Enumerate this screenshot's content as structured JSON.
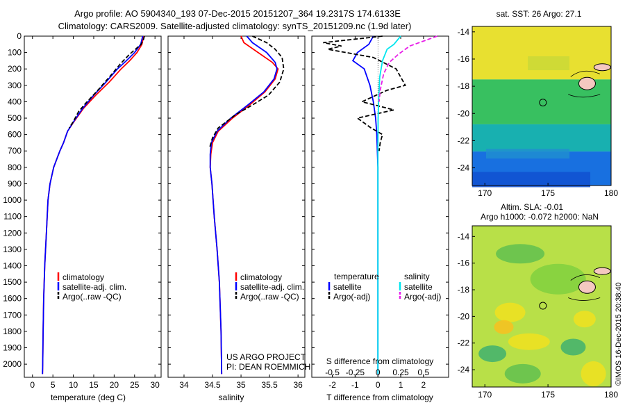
{
  "header": {
    "line1": "Argo profile: AO 5904340_193 07-Dec-2015 20151207_364 19.2317S 174.6133E",
    "line2": "Climatology: CARS2009. Satellite-adjusted climatology: synTS_20151209.nc (1.9d later)"
  },
  "colors": {
    "climatology": "#ff0000",
    "satellite": "#0000ff",
    "argo": "#000000",
    "sat_salinity": "#00e5ee",
    "argo_salinity": "#e81ee8"
  },
  "legend": {
    "climatology": "climatology",
    "satellite_adj": "satellite-adj. clim.",
    "argo": "Argo(..raw -QC)",
    "temperature": "temperature",
    "salinity": "salinity",
    "satellite": "satellite",
    "argo_adj": "Argo(-adj)"
  },
  "project": {
    "line1": "US ARGO PROJECT",
    "line2": "PI: DEAN ROEMMICH"
  },
  "credit": "©IMOS 16-Dec-2015 20:38:40",
  "chart_data": [
    {
      "id": "temperature",
      "type": "line",
      "xlabel": "temperature (deg C)",
      "ylabel": "",
      "xlim": [
        -2,
        31.5
      ],
      "ylim": [
        2080,
        0
      ],
      "xticks": [
        0,
        5,
        10,
        15,
        20,
        25,
        30
      ],
      "yticks": [
        0,
        100,
        200,
        300,
        400,
        500,
        600,
        700,
        800,
        900,
        1000,
        1100,
        1200,
        1300,
        1400,
        1500,
        1600,
        1700,
        1800,
        1900,
        2000
      ],
      "series": [
        {
          "name": "climatology",
          "color": "#ff0000",
          "style": "solid",
          "x": [
            27.2,
            26.8,
            25.6,
            23.8,
            21.7,
            18.8,
            15.5,
            12.5,
            10.2,
            8.6,
            7.6,
            6.7,
            5.2,
            4.3,
            3.8,
            3.4,
            3.0,
            2.75,
            2.6,
            2.5,
            2.45
          ],
          "y": [
            0,
            50,
            100,
            150,
            200,
            280,
            360,
            440,
            520,
            580,
            650,
            700,
            800,
            900,
            1000,
            1200,
            1400,
            1600,
            1800,
            2000,
            2060
          ]
        },
        {
          "name": "satellite-adj. clim.",
          "color": "#0000ff",
          "style": "solid",
          "x": [
            27.0,
            26.5,
            25.0,
            23.0,
            20.8,
            18.0,
            15.0,
            12.3,
            10.1,
            8.6,
            7.6,
            6.7,
            5.2,
            4.3,
            3.8,
            3.4,
            3.0,
            2.75,
            2.6,
            2.5,
            2.45
          ],
          "y": [
            0,
            50,
            100,
            150,
            200,
            280,
            360,
            440,
            520,
            580,
            650,
            700,
            800,
            900,
            1000,
            1200,
            1400,
            1600,
            1800,
            2000,
            2060
          ]
        },
        {
          "name": "Argo(..raw -QC)",
          "color": "#000000",
          "style": "dashed",
          "x": [
            27.4,
            27.2,
            26.6,
            25.2,
            23.8,
            21.5,
            19.5,
            16.0,
            13.0,
            11.3,
            10.0,
            9.0
          ],
          "y": [
            0,
            20,
            50,
            80,
            110,
            170,
            230,
            330,
            410,
            460,
            520,
            560
          ]
        }
      ]
    },
    {
      "id": "salinity",
      "type": "line",
      "xlabel": "salinity",
      "ylabel": "",
      "xlim": [
        33.72,
        36.12
      ],
      "ylim": [
        2080,
        0
      ],
      "xticks": [
        34,
        34.5,
        35,
        35.5,
        36
      ],
      "series": [
        {
          "name": "climatology",
          "color": "#ff0000",
          "style": "solid",
          "x": [
            35.0,
            35.05,
            35.3,
            35.55,
            35.65,
            35.6,
            35.42,
            35.15,
            34.85,
            34.6,
            34.5,
            34.47,
            34.46,
            34.49,
            34.53,
            34.58,
            34.62,
            34.65,
            34.66
          ],
          "y": [
            0,
            40,
            100,
            160,
            200,
            260,
            340,
            420,
            500,
            580,
            650,
            720,
            800,
            900,
            1100,
            1300,
            1500,
            1800,
            2060
          ]
        },
        {
          "name": "satellite-adj. clim.",
          "color": "#0000ff",
          "style": "solid",
          "x": [
            35.1,
            35.2,
            35.45,
            35.6,
            35.63,
            35.58,
            35.4,
            35.12,
            34.82,
            34.58,
            34.48,
            34.46,
            34.46,
            34.49,
            34.53,
            34.58,
            34.62,
            34.65,
            34.66
          ],
          "y": [
            0,
            40,
            100,
            160,
            200,
            260,
            340,
            420,
            500,
            580,
            650,
            720,
            800,
            900,
            1100,
            1300,
            1500,
            1800,
            2060
          ]
        },
        {
          "name": "Argo(..raw -QC)",
          "color": "#000000",
          "style": "dashed",
          "x": [
            35.2,
            35.45,
            35.6,
            35.72,
            35.75,
            35.68,
            35.48,
            35.2,
            34.9,
            34.6,
            34.5,
            34.45
          ],
          "y": [
            0,
            40,
            80,
            130,
            200,
            280,
            360,
            420,
            480,
            560,
            620,
            680
          ]
        }
      ]
    },
    {
      "id": "difference",
      "type": "line",
      "xlabel": "T difference from climatology",
      "xlabel_top": "S difference from climatology",
      "xlim": [
        -2.9,
        3.1
      ],
      "ylim": [
        2080,
        0
      ],
      "xticks_T": [
        -2,
        -1,
        0,
        1,
        2
      ],
      "xticks_S": [
        -0.5,
        -0.25,
        0,
        0.25,
        0.5
      ],
      "xticks_S_labels": [
        "-0.5",
        "-0.25",
        "0",
        "0.25",
        "0.5"
      ],
      "series": [
        {
          "name": "temperature satellite",
          "color": "#0000ff",
          "style": "solid",
          "x": [
            -0.2,
            -0.4,
            -0.9,
            -1.1,
            -0.6,
            -0.35,
            -0.2,
            -0.1,
            -0.05,
            0,
            0,
            0
          ],
          "y": [
            0,
            50,
            100,
            150,
            200,
            300,
            400,
            500,
            600,
            800,
            1200,
            2060
          ]
        },
        {
          "name": "temperature Argo(-adj)",
          "color": "#000000",
          "style": "dashed",
          "x": [
            0.2,
            -2.4,
            -1.6,
            -2.2,
            -0.2,
            0.8,
            1.2,
            0.4,
            -0.7,
            0.7,
            -0.9,
            -0.3,
            0.2,
            0.1,
            0.05
          ],
          "y": [
            0,
            40,
            60,
            80,
            130,
            200,
            300,
            330,
            400,
            450,
            500,
            560,
            600,
            650,
            700
          ]
        },
        {
          "name": "salinity satellite",
          "color": "#00e5ee",
          "style": "solid",
          "x": [
            1.0,
            0.7,
            0.4,
            0.2,
            0.08,
            0.03,
            0.01,
            0,
            0
          ],
          "y": [
            0,
            50,
            80,
            150,
            250,
            400,
            500,
            700,
            2060
          ]
        },
        {
          "name": "salinity Argo(-adj)",
          "color": "#e81ee8",
          "style": "dashed",
          "x": [
            2.6,
            2.0,
            1.4,
            0.9,
            0.5,
            0.25,
            0.1,
            0.05
          ],
          "y": [
            0,
            30,
            60,
            110,
            160,
            230,
            330,
            400
          ]
        }
      ]
    },
    {
      "id": "sst-map",
      "type": "heatmap",
      "title": "sat. SST: 26 Argo: 27.1",
      "xlim": [
        169,
        180
      ],
      "ylim": [
        -25.3,
        -13.6
      ],
      "xticks": [
        170,
        175,
        180
      ],
      "yticks": [
        -14,
        -16,
        -18,
        -20,
        -22,
        -24
      ],
      "marker": {
        "lon": 174.6,
        "lat": -19.2
      },
      "bands": [
        {
          "lat_top": -13.6,
          "lat_bottom": -17.5,
          "color": "#e8e030"
        },
        {
          "lat_top": -17.5,
          "lat_bottom": -20.8,
          "color": "#38c060"
        },
        {
          "lat_top": -20.8,
          "lat_bottom": -22.8,
          "color": "#18b0b0"
        },
        {
          "lat_top": -22.8,
          "lat_bottom": -25.3,
          "color": "#1870e0"
        }
      ]
    },
    {
      "id": "sla-map",
      "type": "heatmap",
      "title": "Altim. SLA: -0.01",
      "subtitle": "Argo h1000: -0.072 h2000: NaN",
      "xlim": [
        169,
        180
      ],
      "ylim": [
        -25.3,
        -13.2
      ],
      "xticks": [
        170,
        175,
        180
      ],
      "yticks": [
        -14,
        -16,
        -18,
        -20,
        -22,
        -24
      ],
      "marker": {
        "lon": 174.6,
        "lat": -19.2
      },
      "background": "#b8e048"
    }
  ]
}
